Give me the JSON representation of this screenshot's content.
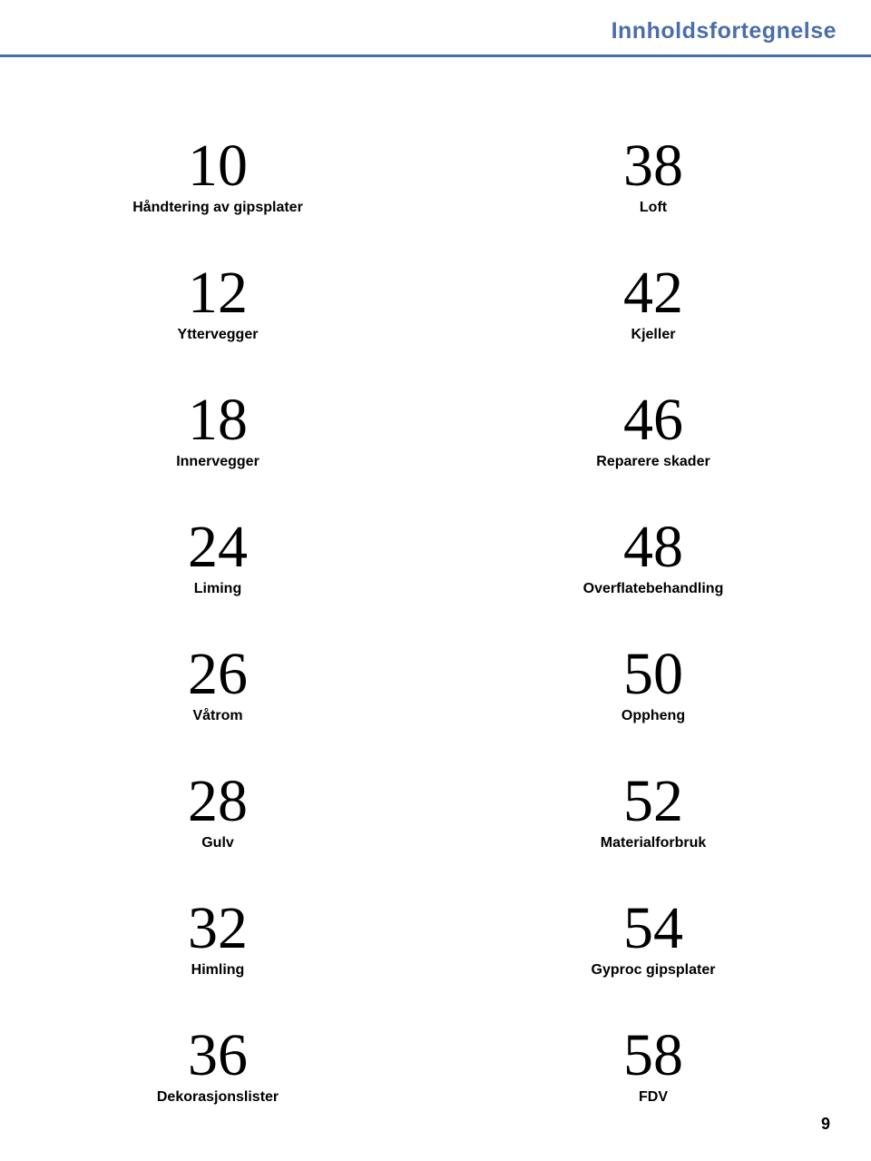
{
  "header": {
    "title": "Innholdsfortegnelse",
    "title_color": "#4a6fa8",
    "bar_color": "#4a6fa8"
  },
  "toc": {
    "left": [
      {
        "number": "10",
        "label": "Håndtering av gipsplater"
      },
      {
        "number": "12",
        "label": "Yttervegger"
      },
      {
        "number": "18",
        "label": "Innervegger"
      },
      {
        "number": "24",
        "label": "Liming"
      },
      {
        "number": "26",
        "label": "Våtrom"
      },
      {
        "number": "28",
        "label": "Gulv"
      },
      {
        "number": "32",
        "label": "Himling"
      },
      {
        "number": "36",
        "label": "Dekorasjonslister"
      }
    ],
    "right": [
      {
        "number": "38",
        "label": "Loft"
      },
      {
        "number": "42",
        "label": "Kjeller"
      },
      {
        "number": "46",
        "label": "Reparere skader"
      },
      {
        "number": "48",
        "label": "Overflatebehandling"
      },
      {
        "number": "50",
        "label": "Oppheng"
      },
      {
        "number": "52",
        "label": "Materialforbruk"
      },
      {
        "number": "54",
        "label": "Gyproc gipsplater"
      },
      {
        "number": "58",
        "label": "FDV"
      }
    ]
  },
  "page_number": "9",
  "style": {
    "number_font": "Times New Roman",
    "number_fontsize": 66,
    "number_color": "#000000",
    "label_font": "Arial",
    "label_fontsize": 16,
    "label_weight": "bold",
    "label_color": "#000000",
    "background_color": "#ffffff"
  }
}
